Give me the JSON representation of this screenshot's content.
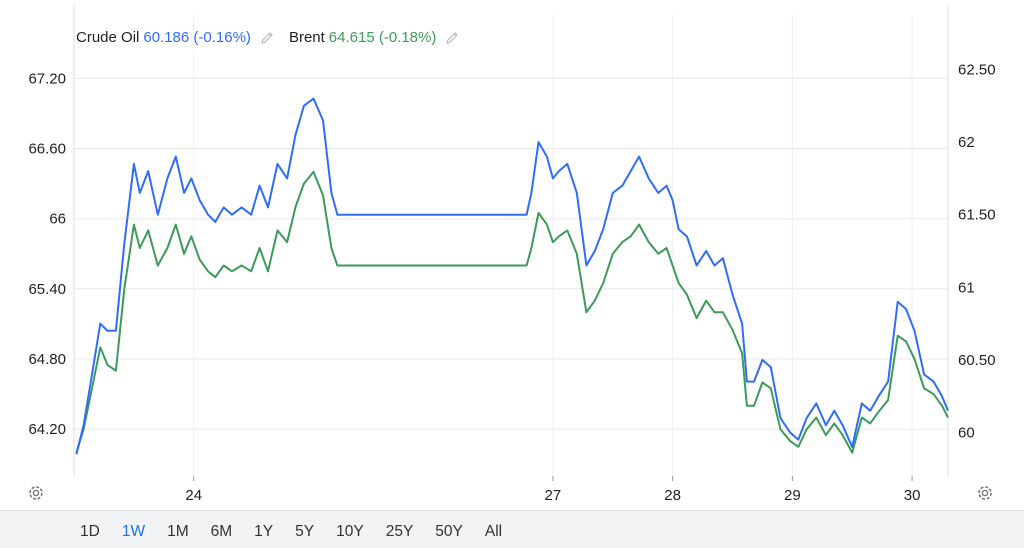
{
  "legend": {
    "series1_name": "Crude Oil",
    "series1_value": "60.186 (-0.16%)",
    "series2_name": "Brent",
    "series2_value": "64.615 (-0.18%)"
  },
  "ranges": [
    "1D",
    "1W",
    "1M",
    "6M",
    "1Y",
    "5Y",
    "10Y",
    "25Y",
    "50Y",
    "All"
  ],
  "active_range": "1W",
  "colors": {
    "crude": "#2f6df6",
    "brent": "#3d9a5a",
    "grid": "#e8e8e8",
    "active_range": "#1a73e8"
  },
  "icons": [
    "pencil-icon",
    "gear-icon"
  ],
  "chart_data": {
    "type": "line",
    "x_ticks": [
      {
        "label": "24",
        "x": 24.0
      },
      {
        "label": "27",
        "x": 27.0
      },
      {
        "label": "28",
        "x": 28.0
      },
      {
        "label": "29",
        "x": 29.0
      },
      {
        "label": "30",
        "x": 30.0
      }
    ],
    "xlim": [
      23.0,
      30.3
    ],
    "y_left": {
      "ticks": [
        "64.20",
        "64.80",
        "65.40",
        "66",
        "66.60",
        "67.20"
      ],
      "ylim": [
        63.8,
        67.4
      ]
    },
    "y_right": {
      "ticks": [
        "60",
        "60.50",
        "61",
        "61.50",
        "62",
        "62.50"
      ],
      "ylim": [
        59.7,
        62.6
      ]
    },
    "grid": true,
    "series": [
      {
        "name": "Crude Oil",
        "axis": "right",
        "color": "#2f6df6",
        "x": [
          23.02,
          23.08,
          23.15,
          23.22,
          23.28,
          23.35,
          23.42,
          23.5,
          23.55,
          23.62,
          23.7,
          23.78,
          23.85,
          23.92,
          23.98,
          24.05,
          24.12,
          24.18,
          24.25,
          24.32,
          24.4,
          24.48,
          24.55,
          24.62,
          24.7,
          24.78,
          24.85,
          24.92,
          25.0,
          25.08,
          25.15,
          25.2,
          26.78,
          26.82,
          26.88,
          26.95,
          27.0,
          27.05,
          27.12,
          27.2,
          27.28,
          27.35,
          27.42,
          27.5,
          27.58,
          27.65,
          27.72,
          27.8,
          27.88,
          27.95,
          28.0,
          28.05,
          28.12,
          28.2,
          28.28,
          28.35,
          28.42,
          28.5,
          28.58,
          28.62,
          28.68,
          28.75,
          28.82,
          28.9,
          28.98,
          29.05,
          29.12,
          29.2,
          29.28,
          29.35,
          29.42,
          29.5,
          29.58,
          29.65,
          29.72,
          29.8,
          29.88,
          29.95,
          30.02,
          30.1,
          30.18,
          30.25,
          30.3
        ],
        "y": [
          59.85,
          60.05,
          60.4,
          60.75,
          60.7,
          60.7,
          61.3,
          61.85,
          61.65,
          61.8,
          61.5,
          61.75,
          61.9,
          61.65,
          61.75,
          61.6,
          61.5,
          61.45,
          61.55,
          61.5,
          61.55,
          61.5,
          61.7,
          61.55,
          61.85,
          61.75,
          62.05,
          62.25,
          62.3,
          62.15,
          61.65,
          61.5,
          61.5,
          61.65,
          62.0,
          61.9,
          61.75,
          61.8,
          61.85,
          61.65,
          61.15,
          61.25,
          61.4,
          61.65,
          61.7,
          61.8,
          61.9,
          61.75,
          61.65,
          61.7,
          61.6,
          61.4,
          61.35,
          61.15,
          61.25,
          61.15,
          61.2,
          60.95,
          60.75,
          60.35,
          60.35,
          60.5,
          60.45,
          60.1,
          60.0,
          59.95,
          60.1,
          60.2,
          60.05,
          60.15,
          60.05,
          59.9,
          60.2,
          60.15,
          60.25,
          60.35,
          60.9,
          60.85,
          60.7,
          60.4,
          60.35,
          60.25,
          60.15
        ]
      },
      {
        "name": "Brent",
        "axis": "left",
        "color": "#3d9a5a",
        "x": [
          23.02,
          23.08,
          23.15,
          23.22,
          23.28,
          23.35,
          23.42,
          23.5,
          23.55,
          23.62,
          23.7,
          23.78,
          23.85,
          23.92,
          23.98,
          24.05,
          24.12,
          24.18,
          24.25,
          24.32,
          24.4,
          24.48,
          24.55,
          24.62,
          24.7,
          24.78,
          24.85,
          24.92,
          25.0,
          25.08,
          25.15,
          25.2,
          26.78,
          26.82,
          26.88,
          26.95,
          27.0,
          27.05,
          27.12,
          27.2,
          27.28,
          27.35,
          27.42,
          27.5,
          27.58,
          27.65,
          27.72,
          27.8,
          27.88,
          27.95,
          28.0,
          28.05,
          28.12,
          28.2,
          28.28,
          28.35,
          28.42,
          28.5,
          28.58,
          28.62,
          28.68,
          28.75,
          28.82,
          28.9,
          28.98,
          29.05,
          29.12,
          29.2,
          29.28,
          29.35,
          29.42,
          29.5,
          29.58,
          29.65,
          29.72,
          29.8,
          29.88,
          29.95,
          30.02,
          30.1,
          30.18,
          30.25,
          30.3
        ],
        "y": [
          64.0,
          64.2,
          64.55,
          64.9,
          64.75,
          64.7,
          65.4,
          65.95,
          65.75,
          65.9,
          65.6,
          65.75,
          65.95,
          65.7,
          65.85,
          65.65,
          65.55,
          65.5,
          65.6,
          65.55,
          65.6,
          65.55,
          65.75,
          65.55,
          65.9,
          65.8,
          66.1,
          66.3,
          66.4,
          66.2,
          65.75,
          65.6,
          65.6,
          65.75,
          66.05,
          65.95,
          65.8,
          65.85,
          65.9,
          65.7,
          65.2,
          65.3,
          65.45,
          65.7,
          65.8,
          65.85,
          65.95,
          65.8,
          65.7,
          65.75,
          65.6,
          65.45,
          65.35,
          65.15,
          65.3,
          65.2,
          65.2,
          65.05,
          64.85,
          64.4,
          64.4,
          64.6,
          64.55,
          64.2,
          64.1,
          64.05,
          64.2,
          64.3,
          64.15,
          64.25,
          64.15,
          64.0,
          64.3,
          64.25,
          64.35,
          64.45,
          65.0,
          64.95,
          64.8,
          64.55,
          64.5,
          64.4,
          64.3
        ]
      }
    ]
  }
}
